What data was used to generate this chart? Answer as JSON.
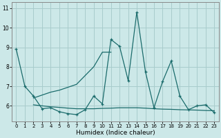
{
  "xlabel": "Humidex (Indice chaleur)",
  "background_color": "#cce8e8",
  "grid_color": "#a8cccc",
  "line_color": "#1a6b6b",
  "x_values": [
    0,
    1,
    2,
    3,
    4,
    5,
    6,
    7,
    8,
    9,
    10,
    11,
    12,
    13,
    14,
    15,
    16,
    17,
    18,
    19,
    20,
    21,
    22,
    23
  ],
  "series_main": [
    8.9,
    7.0,
    6.5,
    5.85,
    5.9,
    5.7,
    5.6,
    5.55,
    5.8,
    6.5,
    6.1,
    9.4,
    9.05,
    7.3,
    10.8,
    7.75,
    5.9,
    7.25,
    8.3,
    6.5,
    5.8,
    6.0,
    6.05,
    5.65
  ],
  "series_rising": [
    null,
    null,
    6.4,
    6.55,
    6.7,
    6.8,
    6.95,
    7.1,
    7.55,
    8.0,
    8.75,
    8.75,
    null,
    null,
    null,
    null,
    null,
    null,
    null,
    null,
    null,
    null,
    null,
    null
  ],
  "series_flat": [
    null,
    null,
    6.05,
    6.0,
    5.95,
    5.92,
    5.88,
    5.85,
    5.85,
    5.85,
    5.87,
    5.88,
    5.9,
    5.9,
    5.9,
    5.88,
    5.85,
    5.83,
    5.82,
    5.8,
    5.79,
    5.78,
    5.76,
    5.75
  ],
  "ylim_min": 5.2,
  "ylim_max": 11.3,
  "yticks": [
    6,
    7,
    8,
    9,
    10,
    11
  ],
  "xticks": [
    0,
    1,
    2,
    3,
    4,
    5,
    6,
    7,
    8,
    9,
    10,
    11,
    12,
    13,
    14,
    15,
    16,
    17,
    18,
    19,
    20,
    21,
    22,
    23
  ]
}
